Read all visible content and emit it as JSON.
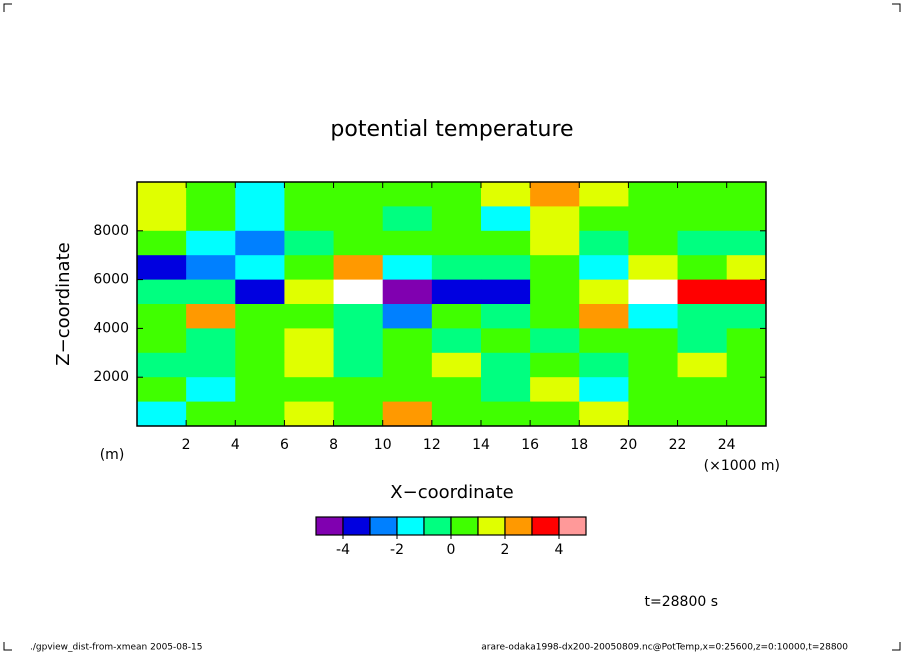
{
  "chart_data": {
    "type": "contour",
    "title": "potential temperature",
    "xlabel": "X−coordinate",
    "ylabel": "Z−coordinate",
    "xunit": "(×1000 m)",
    "yunit": "(m)",
    "time_label": "t=28800 s",
    "footer_left": "./gpview_dist-from-xmean  2005-08-15",
    "footer_right": "arare-odaka1998-dx200-20050809.nc@PotTemp,x=0:25600,z=0:10000,t=28800",
    "xlim": [
      0,
      25.6
    ],
    "ylim": [
      0,
      10000
    ],
    "xticks": [
      2,
      4,
      6,
      8,
      10,
      12,
      14,
      16,
      18,
      20,
      22,
      24
    ],
    "yticks": [
      2000,
      4000,
      6000,
      8000
    ],
    "levels": [
      -5,
      -4,
      -3,
      -2,
      -1,
      0,
      1,
      2,
      3,
      4,
      5
    ],
    "colors": [
      "#8000b0",
      "#0000e0",
      "#0080ff",
      "#00ffff",
      "#00ff80",
      "#40ff00",
      "#e0ff00",
      "#ff9900",
      "#ff0000",
      "#ff9999"
    ],
    "above_color": "#ffffff",
    "cbar_ticks": [
      -4,
      -2,
      0,
      2,
      4
    ],
    "field": {
      "x": [
        1,
        3,
        5,
        7,
        9,
        11,
        13,
        15,
        17,
        19,
        21,
        23,
        25
      ],
      "y": [
        9500,
        8500,
        7500,
        6500,
        5500,
        4500,
        3500,
        2500,
        1500,
        500
      ],
      "values": [
        [
          1.5,
          0.5,
          -1.5,
          0.5,
          0.5,
          0.5,
          0.5,
          1.5,
          2.5,
          1.5,
          0.5,
          0.5,
          0.5
        ],
        [
          1.5,
          0.5,
          -1.5,
          0.5,
          0.5,
          -0.5,
          0.5,
          -1.5,
          1.5,
          0.5,
          0.5,
          0.5,
          0.5
        ],
        [
          0.5,
          -1.5,
          -2.5,
          -0.5,
          0.5,
          0.5,
          0.5,
          0.5,
          1.5,
          -0.5,
          0.5,
          -0.5,
          -0.5
        ],
        [
          -3.5,
          -2.5,
          -1.5,
          0.5,
          2.5,
          -1.5,
          -0.5,
          -0.5,
          0.5,
          -1.5,
          1.5,
          0.5,
          1.5
        ],
        [
          -0.5,
          -0.5,
          -3.5,
          1.5,
          5.5,
          -5.5,
          -3.5,
          -3.5,
          0.5,
          1.5,
          5.5,
          3.5,
          3.5
        ],
        [
          0.5,
          2.5,
          0.5,
          0.5,
          -0.5,
          -2.5,
          0.5,
          -0.5,
          0.5,
          2.5,
          -1.5,
          -0.5,
          -0.5
        ],
        [
          0.5,
          -0.5,
          0.5,
          1.5,
          -0.5,
          0.5,
          -0.5,
          0.5,
          -0.5,
          0.5,
          0.5,
          -0.5,
          0.5
        ],
        [
          -0.5,
          -0.5,
          0.5,
          1.5,
          -0.5,
          0.5,
          1.5,
          -0.5,
          0.5,
          -0.5,
          0.5,
          1.5,
          0.5
        ],
        [
          0.5,
          -1.5,
          0.5,
          0.5,
          0.5,
          0.5,
          0.5,
          -0.5,
          1.5,
          -1.5,
          0.5,
          0.5,
          0.5
        ],
        [
          -1.5,
          0.5,
          0.5,
          1.5,
          0.5,
          2.5,
          0.5,
          0.5,
          0.5,
          1.5,
          0.5,
          0.5,
          0.5
        ]
      ]
    }
  }
}
